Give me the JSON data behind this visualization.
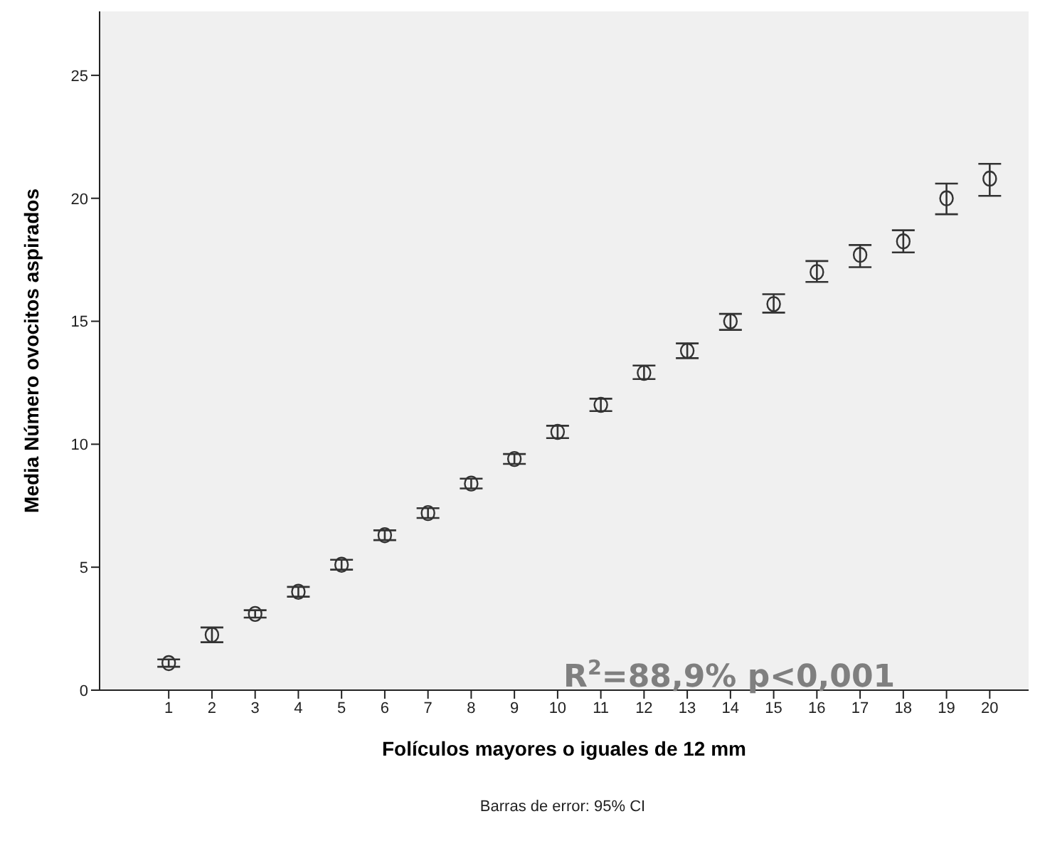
{
  "chart_data": {
    "type": "scatter",
    "xlabel": "Folículos mayores o iguales de 12 mm",
    "ylabel": "Media Número ovocitos aspirados",
    "annotations": [
      "R$^{2}$=88,9% p<0,001",
      "Barras de error: 95% CI"
    ],
    "x": [
      1,
      2,
      3,
      4,
      5,
      6,
      7,
      8,
      9,
      10,
      11,
      12,
      13,
      14,
      15,
      16,
      17,
      18,
      19,
      20
    ],
    "series": [
      {
        "color": "#333333",
        "values": [
          1.1,
          2.25,
          3.1,
          4.0,
          5.1,
          6.3,
          7.2,
          8.4,
          9.4,
          10.5,
          11.6,
          12.9,
          13.8,
          15.0,
          15.7,
          17.0,
          17.7,
          18.25,
          20.0,
          20.8
        ],
        "errors": [
          0.15,
          0.3,
          0.15,
          0.2,
          0.2,
          0.2,
          0.2,
          0.2,
          0.2,
          0.25,
          0.25,
          [
            12.65,
            13.2
          ],
          [
            13.5,
            14.1
          ],
          [
            14.65,
            15.3
          ],
          [
            15.35,
            16.1
          ],
          [
            16.6,
            17.45
          ],
          [
            17.2,
            18.1
          ],
          [
            17.8,
            18.7
          ],
          [
            19.35,
            20.6
          ],
          [
            20.1,
            21.4
          ]
        ]
      }
    ],
    "xlim": [
      -0.6,
      20.9
    ],
    "xticks": [
      1,
      2,
      3,
      4,
      5,
      6,
      7,
      8,
      9,
      10,
      11,
      12,
      13,
      14,
      15,
      16,
      17,
      18,
      19,
      20
    ],
    "ylim": [
      0,
      27.6
    ],
    "yticks": [
      0,
      5,
      10,
      15,
      20,
      25
    ],
    "grid": false,
    "marker": "circle"
  }
}
